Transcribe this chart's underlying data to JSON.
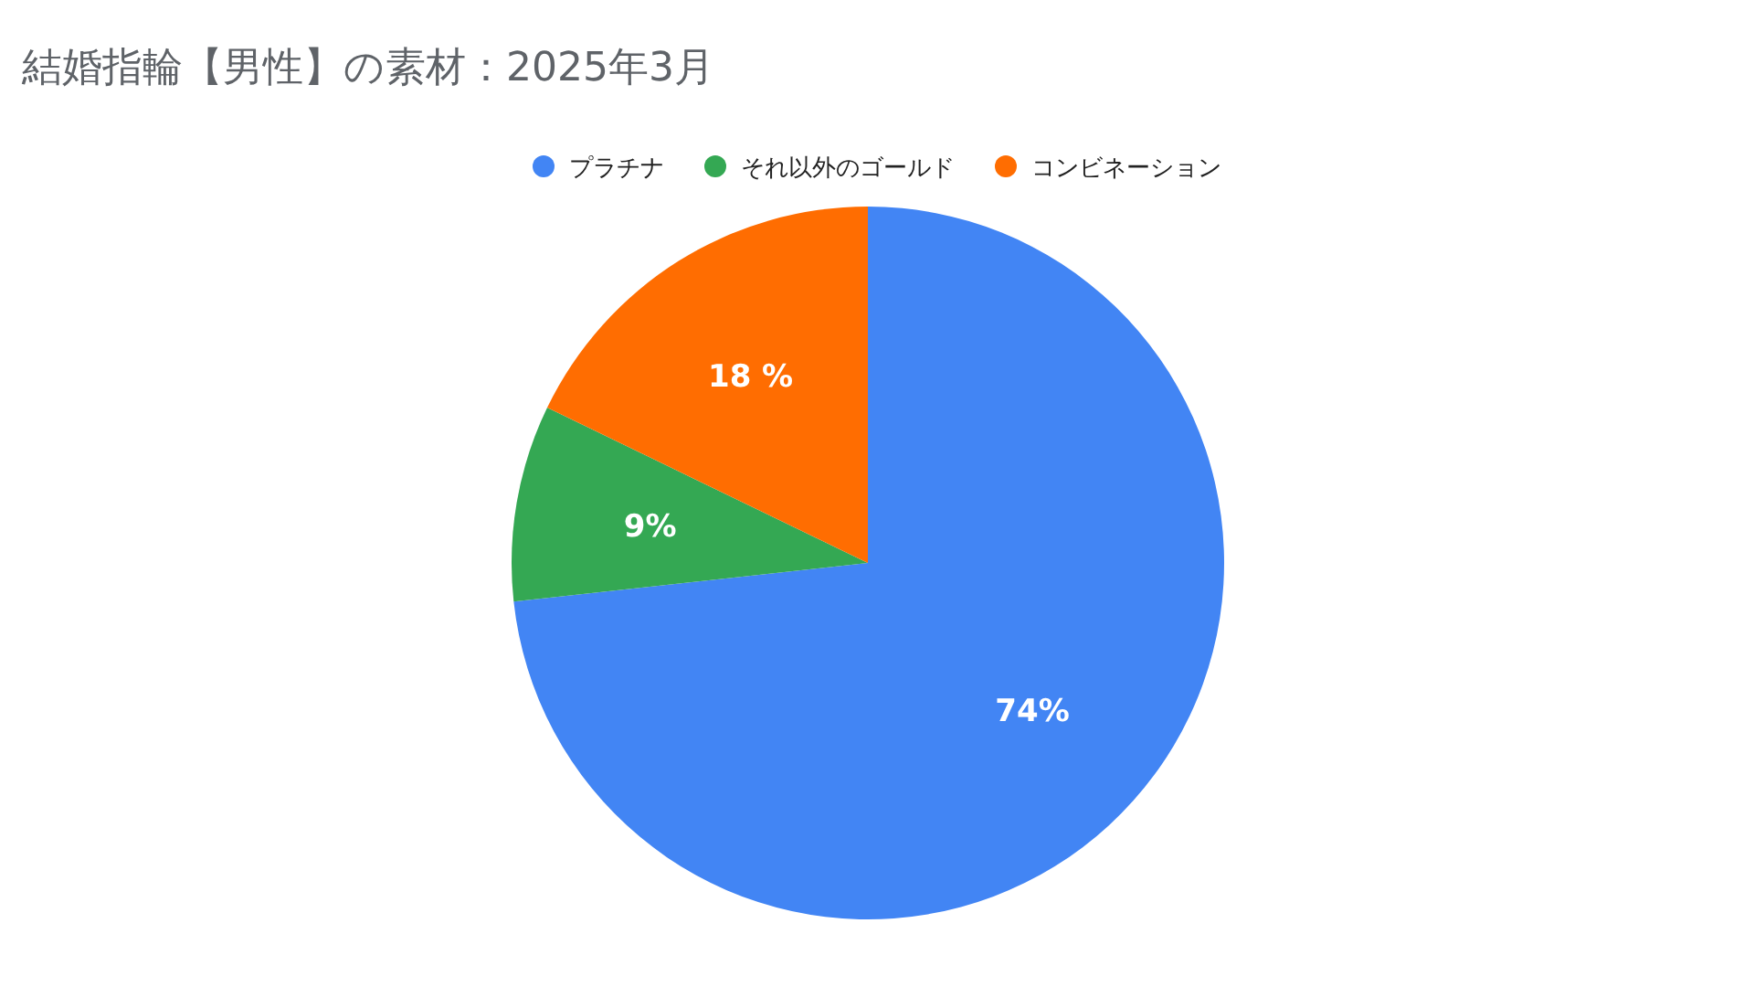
{
  "chart_data": {
    "type": "pie",
    "title": "結婚指輪【男性】の素材：2025年3月",
    "categories": [
      "プラチナ",
      "それ以外のゴールド",
      "コンビネーション"
    ],
    "values": [
      74,
      9,
      18
    ],
    "colors": [
      "#4285f4",
      "#34a853",
      "#ff6d01"
    ],
    "value_labels": [
      "74%",
      "9%",
      "18 %"
    ],
    "legend": "top"
  }
}
